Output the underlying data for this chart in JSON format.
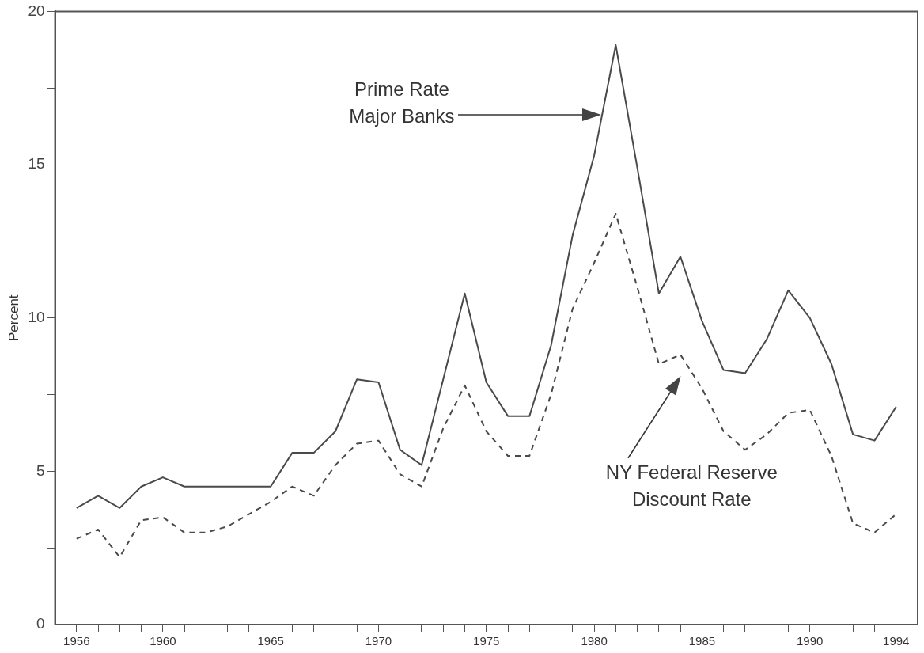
{
  "chart_data": {
    "type": "line",
    "ylabel": "Percent",
    "x": [
      1956,
      1957,
      1958,
      1959,
      1960,
      1961,
      1962,
      1963,
      1964,
      1965,
      1966,
      1967,
      1968,
      1969,
      1970,
      1971,
      1972,
      1973,
      1974,
      1975,
      1976,
      1977,
      1978,
      1979,
      1980,
      1981,
      1982,
      1983,
      1984,
      1985,
      1986,
      1987,
      1988,
      1989,
      1990,
      1991,
      1992,
      1993,
      1994
    ],
    "series": [
      {
        "color": "#4a4a4a",
        "line_style": "solid",
        "values": [
          3.8,
          4.2,
          3.8,
          4.5,
          4.8,
          4.5,
          4.5,
          4.5,
          4.5,
          4.5,
          5.6,
          5.6,
          6.3,
          8.0,
          7.9,
          5.7,
          5.2,
          8.0,
          10.8,
          7.9,
          6.8,
          6.8,
          9.1,
          12.7,
          15.3,
          18.9,
          14.9,
          10.8,
          12.0,
          9.9,
          8.3,
          8.2,
          9.3,
          10.9,
          10.0,
          8.5,
          6.2,
          6.0,
          7.1
        ]
      },
      {
        "color": "#4a4a4a",
        "line_style": "dashed",
        "values": [
          2.8,
          3.1,
          2.2,
          3.4,
          3.5,
          3.0,
          3.0,
          3.2,
          3.6,
          4.0,
          4.5,
          4.2,
          5.2,
          5.9,
          6.0,
          4.9,
          4.5,
          6.4,
          7.8,
          6.3,
          5.5,
          5.5,
          7.5,
          10.3,
          11.8,
          13.4,
          11.0,
          8.5,
          8.8,
          7.7,
          6.3,
          5.7,
          6.2,
          6.9,
          7.0,
          5.5,
          3.3,
          3.0,
          3.6
        ]
      }
    ],
    "annotations": [
      "Prime Rate\nMajor Banks",
      "NY Federal Reserve\nDiscount Rate"
    ],
    "xlim": [
      1955,
      1995
    ],
    "xticks": [
      {
        "value": 1956,
        "label": "1956"
      },
      {
        "value": 1957,
        "label": null
      },
      {
        "value": 1958,
        "label": null
      },
      {
        "value": 1959,
        "label": null
      },
      {
        "value": 1960,
        "label": "1960"
      },
      {
        "value": 1961,
        "label": null
      },
      {
        "value": 1962,
        "label": null
      },
      {
        "value": 1963,
        "label": null
      },
      {
        "value": 1964,
        "label": null
      },
      {
        "value": 1965,
        "label": "1965"
      },
      {
        "value": 1966,
        "label": null
      },
      {
        "value": 1967,
        "label": null
      },
      {
        "value": 1968,
        "label": null
      },
      {
        "value": 1969,
        "label": null
      },
      {
        "value": 1970,
        "label": "1970"
      },
      {
        "value": 1971,
        "label": null
      },
      {
        "value": 1972,
        "label": null
      },
      {
        "value": 1973,
        "label": null
      },
      {
        "value": 1974,
        "label": null
      },
      {
        "value": 1975,
        "label": "1975"
      },
      {
        "value": 1976,
        "label": null
      },
      {
        "value": 1977,
        "label": null
      },
      {
        "value": 1978,
        "label": null
      },
      {
        "value": 1979,
        "label": null
      },
      {
        "value": 1980,
        "label": "1980"
      },
      {
        "value": 1981,
        "label": null
      },
      {
        "value": 1982,
        "label": null
      },
      {
        "value": 1983,
        "label": null
      },
      {
        "value": 1984,
        "label": null
      },
      {
        "value": 1985,
        "label": "1985"
      },
      {
        "value": 1986,
        "label": null
      },
      {
        "value": 1987,
        "label": null
      },
      {
        "value": 1988,
        "label": null
      },
      {
        "value": 1989,
        "label": null
      },
      {
        "value": 1990,
        "label": "1990"
      },
      {
        "value": 1991,
        "label": null
      },
      {
        "value": 1992,
        "label": null
      },
      {
        "value": 1993,
        "label": null
      },
      {
        "value": 1994,
        "label": "1994"
      }
    ],
    "ylim": [
      0,
      20
    ],
    "yticks": [
      0,
      {
        "value": 2.5,
        "label": null
      },
      5,
      {
        "value": 7.5,
        "label": null
      },
      10,
      {
        "value": 12.5,
        "label": null
      },
      15,
      {
        "value": 17.5,
        "label": null
      },
      20
    ],
    "grid": false,
    "legend": false,
    "marker": "none"
  }
}
